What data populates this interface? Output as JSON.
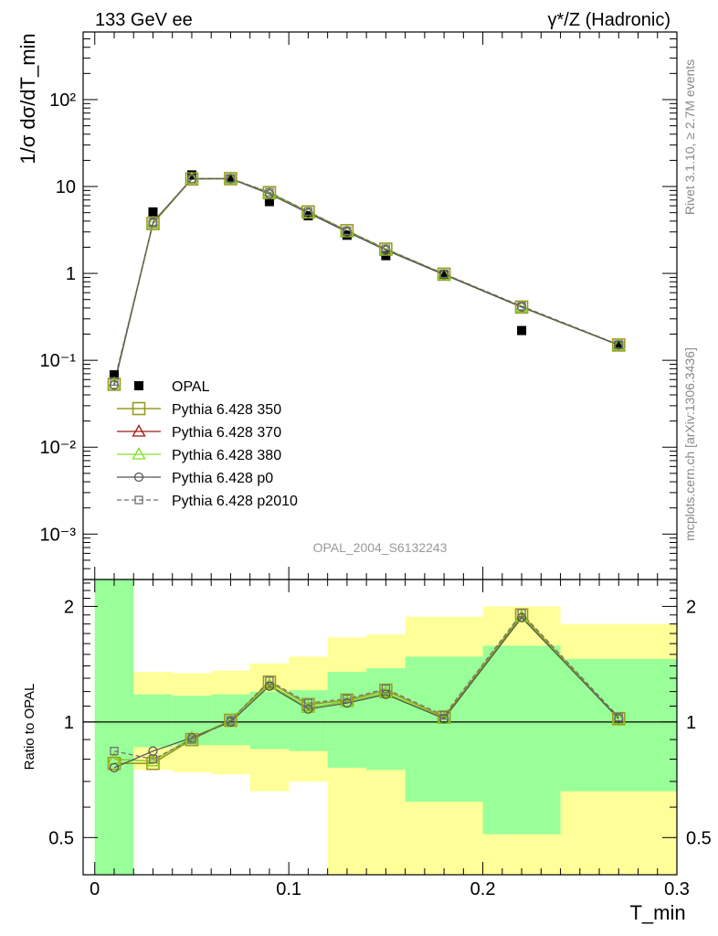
{
  "header": {
    "left": "133 GeV ee",
    "right": "γ*/Z (Hadronic)"
  },
  "side_text": {
    "rivet": "Rivet 3.1.10, ≥ 2.7M events",
    "mcplots": "mcplots.cern.ch [arXiv:1306.3436]"
  },
  "watermark": "OPAL_2004_S6132243",
  "colors": {
    "opal": "#000000",
    "p350": "#9a9a20",
    "p370": "#a01818",
    "p380": "#80e020",
    "p0": "#505050",
    "p2010": "#707070",
    "band_inner": "#99ff99",
    "band_outer": "#ffff99"
  },
  "chart_data": [
    {
      "type": "line",
      "panel": "main",
      "ylabel": "1/σ dσ/dT_min",
      "yscale": "log",
      "ylim": [
        0.0003,
        600
      ],
      "xlim": [
        -0.006,
        0.3
      ],
      "y_tick_labels": [
        "10⁻³",
        "10⁻²",
        "10⁻¹",
        "1",
        "10",
        "10²"
      ],
      "x": [
        0.01,
        0.03,
        0.05,
        0.07,
        0.09,
        0.11,
        0.13,
        0.15,
        0.18,
        0.22,
        0.27
      ],
      "series": [
        {
          "name": "OPAL",
          "marker": "square-filled",
          "values": [
            0.068,
            5.1,
            13.6,
            12.3,
            6.7,
            4.6,
            2.75,
            1.6,
            0.96,
            0.22,
            0.148
          ]
        },
        {
          "name": "Pythia 6.428 350",
          "marker": "square-open",
          "values": [
            0.053,
            3.75,
            12.2,
            12.3,
            8.5,
            5.1,
            3.1,
            1.9,
            0.98,
            0.41,
            0.15
          ]
        },
        {
          "name": "Pythia 6.428 370",
          "marker": "triangle-open",
          "values": [
            0.054,
            3.8,
            12.3,
            12.4,
            8.4,
            5.0,
            3.05,
            1.88,
            0.97,
            0.41,
            0.15
          ]
        },
        {
          "name": "Pythia 6.428 380",
          "marker": "triangle-open",
          "values": [
            0.054,
            3.8,
            12.3,
            12.4,
            8.4,
            5.0,
            3.05,
            1.88,
            0.97,
            0.41,
            0.15
          ]
        },
        {
          "name": "Pythia 6.428 p0",
          "marker": "circle-open",
          "values": [
            0.052,
            3.9,
            12.3,
            12.3,
            8.2,
            4.95,
            3.0,
            1.85,
            0.97,
            0.41,
            0.15
          ]
        },
        {
          "name": "Pythia 6.428 p2010",
          "marker": "square-open-small",
          "dashed": true,
          "values": [
            0.057,
            3.8,
            12.2,
            12.4,
            8.6,
            5.15,
            3.1,
            1.92,
            0.99,
            0.42,
            0.152
          ]
        }
      ],
      "legend_position": "lower-left"
    },
    {
      "type": "line",
      "panel": "ratio",
      "xlabel": "T_min",
      "ylabel": "Ratio to OPAL",
      "yscale": "log",
      "ylim": [
        0.4,
        2.35
      ],
      "xlim": [
        -0.006,
        0.3
      ],
      "x_ticks": [
        0,
        0.1,
        0.2,
        0.3
      ],
      "x_tick_labels": [
        "0",
        "0.1",
        "0.2",
        "0.3"
      ],
      "y_ticks": [
        0.5,
        1,
        2
      ],
      "y_tick_labels": [
        "0.5",
        "1",
        "2"
      ],
      "band_bins": [
        {
          "x0": 0.0,
          "x1": 0.02,
          "inner": [
            0.4,
            2.35
          ],
          "outer": [
            0.4,
            2.35
          ]
        },
        {
          "x0": 0.02,
          "x1": 0.04,
          "inner": [
            0.86,
            1.18
          ],
          "outer": [
            0.75,
            1.35
          ]
        },
        {
          "x0": 0.04,
          "x1": 0.06,
          "inner": [
            0.87,
            1.17
          ],
          "outer": [
            0.74,
            1.34
          ]
        },
        {
          "x0": 0.06,
          "x1": 0.08,
          "inner": [
            0.87,
            1.18
          ],
          "outer": [
            0.73,
            1.36
          ]
        },
        {
          "x0": 0.08,
          "x1": 0.1,
          "inner": [
            0.85,
            1.2
          ],
          "outer": [
            0.66,
            1.42
          ]
        },
        {
          "x0": 0.1,
          "x1": 0.12,
          "inner": [
            0.84,
            1.21
          ],
          "outer": [
            0.7,
            1.48
          ]
        },
        {
          "x0": 0.12,
          "x1": 0.14,
          "inner": [
            0.76,
            1.35
          ],
          "outer": [
            0.38,
            1.66
          ]
        },
        {
          "x0": 0.14,
          "x1": 0.16,
          "inner": [
            0.75,
            1.38
          ],
          "outer": [
            0.35,
            1.69
          ]
        },
        {
          "x0": 0.16,
          "x1": 0.2,
          "inner": [
            0.62,
            1.48
          ],
          "outer": [
            0.35,
            1.88
          ]
        },
        {
          "x0": 0.2,
          "x1": 0.24,
          "inner": [
            0.51,
            1.58
          ],
          "outer": [
            0.35,
            2.0
          ]
        },
        {
          "x0": 0.24,
          "x1": 0.3,
          "inner": [
            0.66,
            1.46
          ],
          "outer": [
            0.35,
            1.8
          ]
        }
      ],
      "x": [
        0.01,
        0.03,
        0.05,
        0.07,
        0.09,
        0.11,
        0.13,
        0.15,
        0.18,
        0.22,
        0.27
      ],
      "series": [
        {
          "name": "Pythia 6.428 350",
          "values": [
            0.78,
            0.78,
            0.9,
            1.01,
            1.27,
            1.11,
            1.14,
            1.21,
            1.03,
            1.9,
            1.02
          ]
        },
        {
          "name": "Pythia 6.428 370",
          "values": [
            0.8,
            0.79,
            0.91,
            1.01,
            1.25,
            1.09,
            1.13,
            1.19,
            1.02,
            1.88,
            1.02
          ]
        },
        {
          "name": "Pythia 6.428 380",
          "values": [
            0.8,
            0.79,
            0.91,
            1.01,
            1.25,
            1.09,
            1.13,
            1.19,
            1.02,
            1.88,
            1.02
          ]
        },
        {
          "name": "Pythia 6.428 p0",
          "values": [
            0.76,
            0.84,
            0.91,
            1.0,
            1.24,
            1.08,
            1.12,
            1.18,
            1.02,
            1.87,
            1.02
          ]
        },
        {
          "name": "Pythia 6.428 p2010",
          "values": [
            0.84,
            0.8,
            0.9,
            1.01,
            1.28,
            1.12,
            1.15,
            1.22,
            1.04,
            1.92,
            1.03
          ]
        }
      ]
    }
  ]
}
